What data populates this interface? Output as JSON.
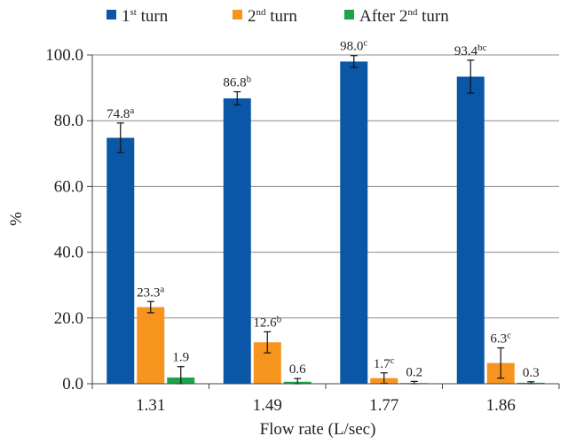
{
  "chart_data": {
    "type": "bar",
    "xlabel": "Flow rate (L/sec)",
    "ylabel": "%",
    "ylim": [
      0,
      100
    ],
    "yticks": [
      "0.0",
      "20.0",
      "40.0",
      "60.0",
      "80.0",
      "100.0"
    ],
    "grid": true,
    "legend_position": "top",
    "categories": [
      "1.31",
      "1.49",
      "1.77",
      "1.86"
    ],
    "series": [
      {
        "name": "1st turn",
        "legend_base": "1",
        "legend_sup": "st",
        "legend_rest": " turn",
        "color": "#0b57a7",
        "values": [
          74.8,
          86.8,
          98.0,
          93.4
        ],
        "errors": [
          4.5,
          2.0,
          1.8,
          5.0
        ],
        "labels": [
          "74.8",
          "86.8",
          "98.0",
          "93.4"
        ],
        "letters": [
          "a",
          "b",
          "c",
          "bc"
        ]
      },
      {
        "name": "2nd turn",
        "legend_base": "2",
        "legend_sup": "nd",
        "legend_rest": " turn",
        "color": "#f7941d",
        "values": [
          23.3,
          12.6,
          1.7,
          6.3
        ],
        "errors": [
          1.7,
          3.2,
          1.6,
          4.6
        ],
        "labels": [
          "23.3",
          "12.6",
          "1.7",
          "6.3"
        ],
        "letters": [
          "a",
          "b",
          "c",
          "c"
        ]
      },
      {
        "name": "After 2nd turn",
        "legend_base": "After 2",
        "legend_sup": "nd",
        "legend_rest": " turn",
        "color": "#1ea34a",
        "values": [
          1.9,
          0.6,
          0.2,
          0.3
        ],
        "errors": [
          3.3,
          1.0,
          0.5,
          0.3
        ],
        "labels": [
          "1.9",
          "0.6",
          "0.2",
          "0.3"
        ],
        "letters": [
          "",
          "",
          "",
          ""
        ]
      }
    ]
  }
}
